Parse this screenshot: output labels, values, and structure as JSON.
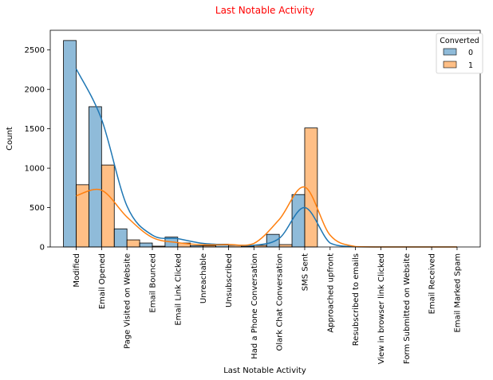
{
  "chart_data": {
    "type": "bar",
    "title": "Last Notable Activity",
    "title_color": "#ff0000",
    "xlabel": "Last Notable Activity",
    "ylabel": "Count",
    "ylim": [
      0,
      2750
    ],
    "yticks": [
      0,
      500,
      1000,
      1500,
      2000,
      2500
    ],
    "grid": false,
    "legend_position": "top-right",
    "legend_title": "Converted",
    "categories": [
      "Modified",
      "Email Opened",
      "Page Visited on Website",
      "Email Bounced",
      "Email Link Clicked",
      "Unreachable",
      "Unsubscribed",
      "Had a Phone Conversation",
      "Olark Chat Conversation",
      "SMS Sent",
      "Approached upfront",
      "Resubscribed to emails",
      "View in browser link Clicked",
      "Form Submitted on Website",
      "Email Received",
      "Email Marked Spam"
    ],
    "series": [
      {
        "name": "0",
        "color": "#1f77b4",
        "values": [
          2620,
          1780,
          230,
          50,
          125,
          15,
          35,
          10,
          160,
          665,
          0,
          0,
          0,
          0,
          0,
          0
        ],
        "kde": [
          2260,
          1620,
          520,
          150,
          105,
          45,
          28,
          22,
          110,
          500,
          50,
          2,
          0,
          0,
          0,
          0
        ]
      },
      {
        "name": "1",
        "color": "#ff7f0e",
        "values": [
          790,
          1040,
          90,
          10,
          50,
          15,
          20,
          20,
          30,
          1510,
          0,
          0,
          0,
          0,
          0,
          0
        ],
        "kde": [
          650,
          720,
          380,
          120,
          55,
          28,
          30,
          45,
          350,
          760,
          150,
          5,
          0,
          0,
          0,
          0
        ]
      }
    ]
  }
}
